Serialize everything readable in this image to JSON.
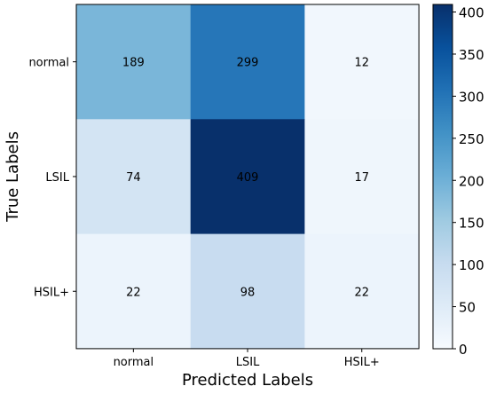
{
  "chart_data": {
    "type": "heatmap",
    "title": "",
    "xlabel": "Predicted Labels",
    "ylabel": "True Labels",
    "x_categories": [
      "normal",
      "LSIL",
      "HSIL+"
    ],
    "y_categories": [
      "normal",
      "LSIL",
      "HSIL+"
    ],
    "values": [
      [
        189,
        299,
        12
      ],
      [
        74,
        409,
        17
      ],
      [
        22,
        98,
        22
      ]
    ],
    "colormap": "Blues",
    "colorbar": {
      "range": [
        0,
        409
      ],
      "ticks": [
        0,
        50,
        100,
        150,
        200,
        250,
        300,
        350,
        400
      ],
      "placement": "right"
    },
    "colors": {
      "stops": [
        "#f7fbff",
        "#deebf7",
        "#c6dbef",
        "#9ecae1",
        "#6baed6",
        "#4292c6",
        "#2171b5",
        "#08519c",
        "#08306b"
      ]
    }
  }
}
